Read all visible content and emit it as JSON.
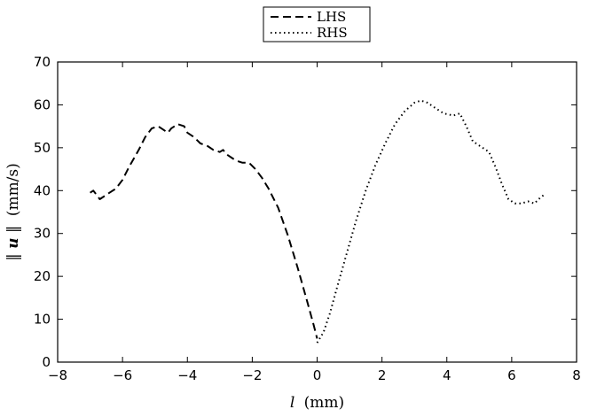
{
  "chart_data": {
    "type": "line",
    "title": "",
    "xlabel": "l (mm)",
    "xlabel_var": "l",
    "xlabel_unit": "(mm)",
    "ylabel": "‖u‖ (mm/s)",
    "ylabel_norm_open": "‖",
    "ylabel_var": "u",
    "ylabel_norm_close": "‖",
    "ylabel_unit": "(mm/s)",
    "xlim": [
      -8,
      8
    ],
    "ylim": [
      0,
      70
    ],
    "xticks": [
      -8,
      -6,
      -4,
      -2,
      0,
      2,
      4,
      6,
      8
    ],
    "yticks": [
      0,
      10,
      20,
      30,
      40,
      50,
      60,
      70
    ],
    "xtick_labels": [
      "−8",
      "−6",
      "−4",
      "−2",
      "0",
      "2",
      "4",
      "6",
      "8"
    ],
    "ytick_labels": [
      "0",
      "10",
      "20",
      "30",
      "40",
      "50",
      "60",
      "70"
    ],
    "grid": false,
    "legend_position": "top-center",
    "series": [
      {
        "name": "LHS",
        "style": "dashed",
        "color": "#000000",
        "x": [
          -7.0,
          -6.9,
          -6.8,
          -6.7,
          -6.5,
          -6.2,
          -6.0,
          -5.8,
          -5.5,
          -5.3,
          -5.1,
          -4.9,
          -4.8,
          -4.6,
          -4.5,
          -4.3,
          -4.1,
          -4.0,
          -3.8,
          -3.6,
          -3.4,
          -3.2,
          -3.0,
          -2.9,
          -2.8,
          -2.6,
          -2.5,
          -2.3,
          -2.1,
          -1.9,
          -1.7,
          -1.5,
          -1.2,
          -0.9,
          -0.6,
          -0.3,
          -0.1,
          0.0
        ],
        "y": [
          39.5,
          40.0,
          39.0,
          38.0,
          39.0,
          40.5,
          42.5,
          45.5,
          49.5,
          52.5,
          54.5,
          55.0,
          54.5,
          53.5,
          54.5,
          55.5,
          55.0,
          53.5,
          52.5,
          51.0,
          50.5,
          49.5,
          49.0,
          49.5,
          48.5,
          47.5,
          47.0,
          46.5,
          46.5,
          45.0,
          43.0,
          40.5,
          36.0,
          29.5,
          22.0,
          14.0,
          8.5,
          5.5
        ]
      },
      {
        "name": "RHS",
        "style": "dotted",
        "color": "#000000",
        "x": [
          0.0,
          0.2,
          0.4,
          0.6,
          0.9,
          1.2,
          1.5,
          1.8,
          2.1,
          2.4,
          2.7,
          3.0,
          3.2,
          3.4,
          3.6,
          3.9,
          4.2,
          4.4,
          4.6,
          4.8,
          5.0,
          5.3,
          5.5,
          5.7,
          5.9,
          6.1,
          6.3,
          6.5,
          6.7,
          6.9,
          7.0
        ],
        "y": [
          4.5,
          7.0,
          11.5,
          17.0,
          25.0,
          33.0,
          40.0,
          46.0,
          51.0,
          55.5,
          58.5,
          60.5,
          61.0,
          60.5,
          59.5,
          58.0,
          57.5,
          58.0,
          55.0,
          51.5,
          50.5,
          49.0,
          45.5,
          41.5,
          38.0,
          37.0,
          37.0,
          37.5,
          37.0,
          38.5,
          39.0
        ]
      }
    ]
  }
}
